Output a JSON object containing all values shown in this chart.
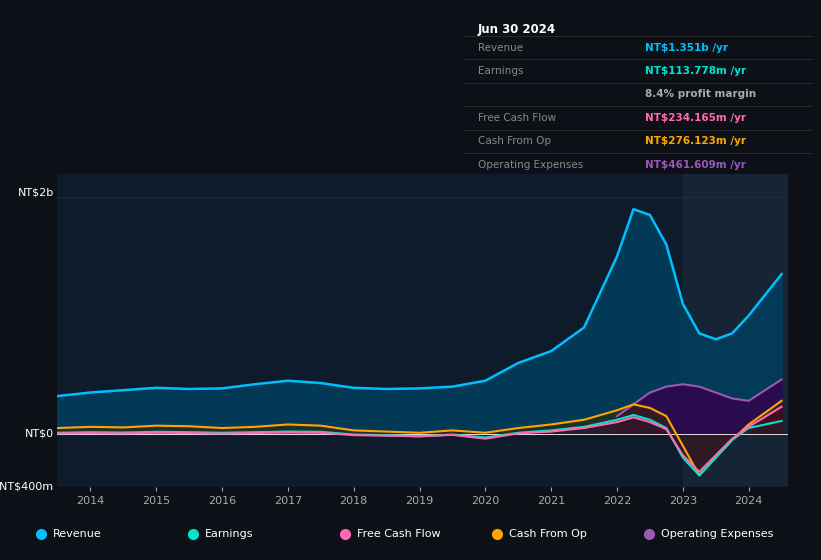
{
  "bg_color": "#0d1117",
  "plot_bg_color": "#0d1b2a",
  "ylim": [
    -450000000.0,
    2200000000.0
  ],
  "x_years": [
    2013.5,
    2014,
    2014.5,
    2015,
    2015.5,
    2016,
    2016.5,
    2017,
    2017.5,
    2018,
    2018.5,
    2019,
    2019.5,
    2020,
    2020.5,
    2021,
    2021.5,
    2022,
    2022.25,
    2022.5,
    2022.75,
    2023,
    2023.25,
    2023.5,
    2023.75,
    2024,
    2024.5
  ],
  "revenue": [
    320000000.0,
    350000000.0,
    370000000.0,
    390000000.0,
    380000000.0,
    385000000.0,
    420000000.0,
    450000000.0,
    430000000.0,
    390000000.0,
    380000000.0,
    385000000.0,
    400000000.0,
    450000000.0,
    600000000.0,
    700000000.0,
    900000000.0,
    1500000000.0,
    1900000000.0,
    1850000000.0,
    1600000000.0,
    1100000000.0,
    850000000.0,
    800000000.0,
    850000000.0,
    1000000000.0,
    1350000000.0
  ],
  "earnings": [
    10000000.0,
    15000000.0,
    12000000.0,
    18000000.0,
    15000000.0,
    10000000.0,
    15000000.0,
    20000000.0,
    18000000.0,
    -5000000.0,
    -10000000.0,
    -20000000.0,
    -5000000.0,
    -30000000.0,
    10000000.0,
    30000000.0,
    60000000.0,
    120000000.0,
    160000000.0,
    120000000.0,
    50000000.0,
    -200000000.0,
    -350000000.0,
    -200000000.0,
    -50000000.0,
    50000000.0,
    110000000.0
  ],
  "free_cash_flow": [
    5000000.0,
    8000000.0,
    5000000.0,
    10000000.0,
    8000000.0,
    3000000.0,
    8000000.0,
    12000000.0,
    10000000.0,
    -10000000.0,
    -15000000.0,
    -20000000.0,
    -8000000.0,
    -40000000.0,
    5000000.0,
    20000000.0,
    50000000.0,
    100000000.0,
    140000000.0,
    100000000.0,
    40000000.0,
    -180000000.0,
    -320000000.0,
    -180000000.0,
    -40000000.0,
    60000000.0,
    230000000.0
  ],
  "cash_from_op": [
    50000000.0,
    60000000.0,
    55000000.0,
    70000000.0,
    65000000.0,
    50000000.0,
    60000000.0,
    80000000.0,
    70000000.0,
    30000000.0,
    20000000.0,
    10000000.0,
    30000000.0,
    10000000.0,
    50000000.0,
    80000000.0,
    120000000.0,
    200000000.0,
    250000000.0,
    220000000.0,
    150000000.0,
    -100000000.0,
    -350000000.0,
    -200000000.0,
    -50000000.0,
    80000000.0,
    280000000.0
  ],
  "op_expenses": [
    0,
    0,
    0,
    0,
    0,
    0,
    0,
    0,
    0,
    0,
    0,
    0,
    0,
    0,
    0,
    0,
    0,
    150000000.0,
    250000000.0,
    350000000.0,
    400000000.0,
    420000000.0,
    400000000.0,
    350000000.0,
    300000000.0,
    280000000.0,
    460000000.0
  ],
  "legend": [
    {
      "label": "Revenue",
      "color": "#00bfff"
    },
    {
      "label": "Earnings",
      "color": "#00e5cc"
    },
    {
      "label": "Free Cash Flow",
      "color": "#ff69b4"
    },
    {
      "label": "Cash From Op",
      "color": "#ffa500"
    },
    {
      "label": "Operating Expenses",
      "color": "#9b59b6"
    }
  ],
  "line_colors": {
    "revenue": "#00bfff",
    "earnings": "#00e5cc",
    "free_cash_flow": "#ff69b4",
    "cash_from_op": "#ffa500",
    "op_expenses": "#9b59b6"
  },
  "fill_colors": {
    "revenue": "#003d5c",
    "earnings": "#004040",
    "free_cash_flow": "#4a0020",
    "cash_from_op": "#3a2800",
    "op_expenses": "#2d0a4e"
  },
  "grid_color": "#1e2d3d",
  "text_color": "#aaaaaa",
  "white_color": "#ffffff",
  "table": {
    "title": "Jun 30 2024",
    "title_color": "#ffffff",
    "bg_color": "#0a0a0a",
    "border_color": "#333333",
    "rows": [
      {
        "label": "Revenue",
        "label_color": "#888888",
        "value": "NT$1.351b /yr",
        "value_color": "#00bfff"
      },
      {
        "label": "Earnings",
        "label_color": "#888888",
        "value": "NT$113.778m /yr",
        "value_color": "#00e5cc"
      },
      {
        "label": "",
        "label_color": "#888888",
        "value": "8.4% profit margin",
        "value_color": "#aaaaaa"
      },
      {
        "label": "Free Cash Flow",
        "label_color": "#888888",
        "value": "NT$234.165m /yr",
        "value_color": "#ff69b4"
      },
      {
        "label": "Cash From Op",
        "label_color": "#888888",
        "value": "NT$276.123m /yr",
        "value_color": "#ffa500"
      },
      {
        "label": "Operating Expenses",
        "label_color": "#888888",
        "value": "NT$461.609m /yr",
        "value_color": "#9b59b6"
      }
    ]
  }
}
